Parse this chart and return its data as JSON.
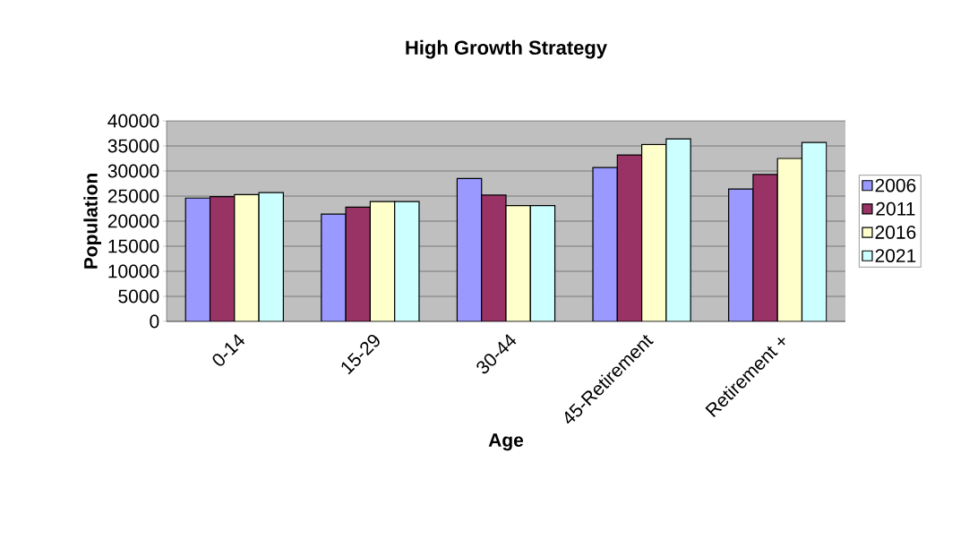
{
  "chart_data": {
    "type": "bar",
    "title": "High Growth Strategy",
    "xlabel": "Age",
    "ylabel": "Population",
    "categories": [
      "0-14",
      "15-29",
      "30-44",
      "45-Retirement",
      "Retirement +"
    ],
    "series": [
      {
        "name": "2006",
        "color": "#9999ff",
        "values": [
          24600,
          21400,
          28500,
          30700,
          26400
        ]
      },
      {
        "name": "2011",
        "color": "#993366",
        "values": [
          24900,
          22800,
          25200,
          33200,
          29300
        ]
      },
      {
        "name": "2016",
        "color": "#ffffcc",
        "values": [
          25300,
          23900,
          23100,
          35300,
          32500
        ]
      },
      {
        "name": "2021",
        "color": "#ccffff",
        "values": [
          25700,
          23900,
          23100,
          36400,
          35700
        ]
      }
    ],
    "ylim": [
      0,
      40000
    ],
    "yticks": [
      0,
      5000,
      10000,
      15000,
      20000,
      25000,
      30000,
      35000,
      40000
    ],
    "grid": "y",
    "legend": "right"
  }
}
